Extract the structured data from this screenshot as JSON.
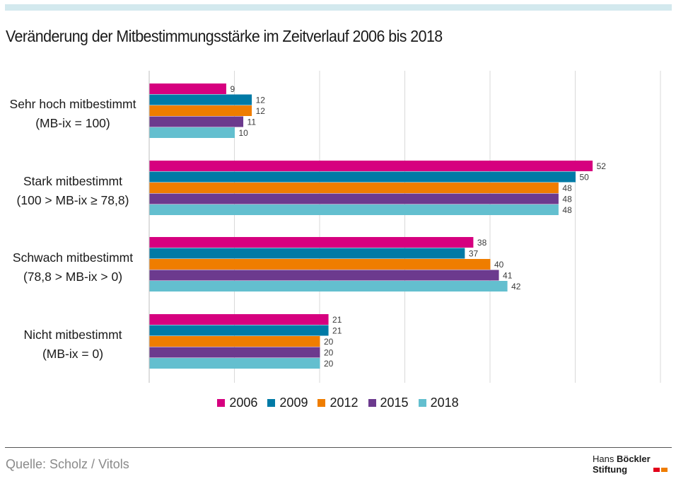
{
  "title": "Veränderung der Mitbestimmungsstärke im Zeitverlauf 2006 bis 2018",
  "source": "Quelle: Scholz / Vitols",
  "logo": {
    "line1_a": "Hans",
    "line1_b": "Böckler",
    "line2": "Stiftung"
  },
  "colors": {
    "2006": "#d6007f",
    "2009": "#007aa6",
    "2012": "#ef7d00",
    "2015": "#6c3a8e",
    "2018": "#63bfcf",
    "logo_red": "#e2001a",
    "logo_orange": "#ef7d00"
  },
  "chart_data": {
    "type": "bar",
    "orientation": "horizontal",
    "title": "Veränderung der Mitbestimmungsstärke im Zeitverlauf 2006 bis 2018",
    "categories": [
      [
        "Sehr hoch mitbestimmt",
        "(MB-ix = 100)"
      ],
      [
        "Stark mitbestimmt",
        "(100 > MB-ix ≥ 78,8)"
      ],
      [
        "Schwach mitbestimmt",
        "(78,8 > MB-ix > 0)"
      ],
      [
        "Nicht mitbestimmt",
        "(MB-ix = 0)"
      ]
    ],
    "series": [
      {
        "name": "2006",
        "values": [
          9,
          52,
          38,
          21
        ]
      },
      {
        "name": "2009",
        "values": [
          12,
          50,
          37,
          21
        ]
      },
      {
        "name": "2012",
        "values": [
          12,
          48,
          40,
          20
        ]
      },
      {
        "name": "2015",
        "values": [
          11,
          48,
          41,
          20
        ]
      },
      {
        "name": "2018",
        "values": [
          10,
          48,
          42,
          20
        ]
      }
    ],
    "xlim": [
      0,
      60
    ],
    "grid": true,
    "legend_position": "bottom"
  }
}
